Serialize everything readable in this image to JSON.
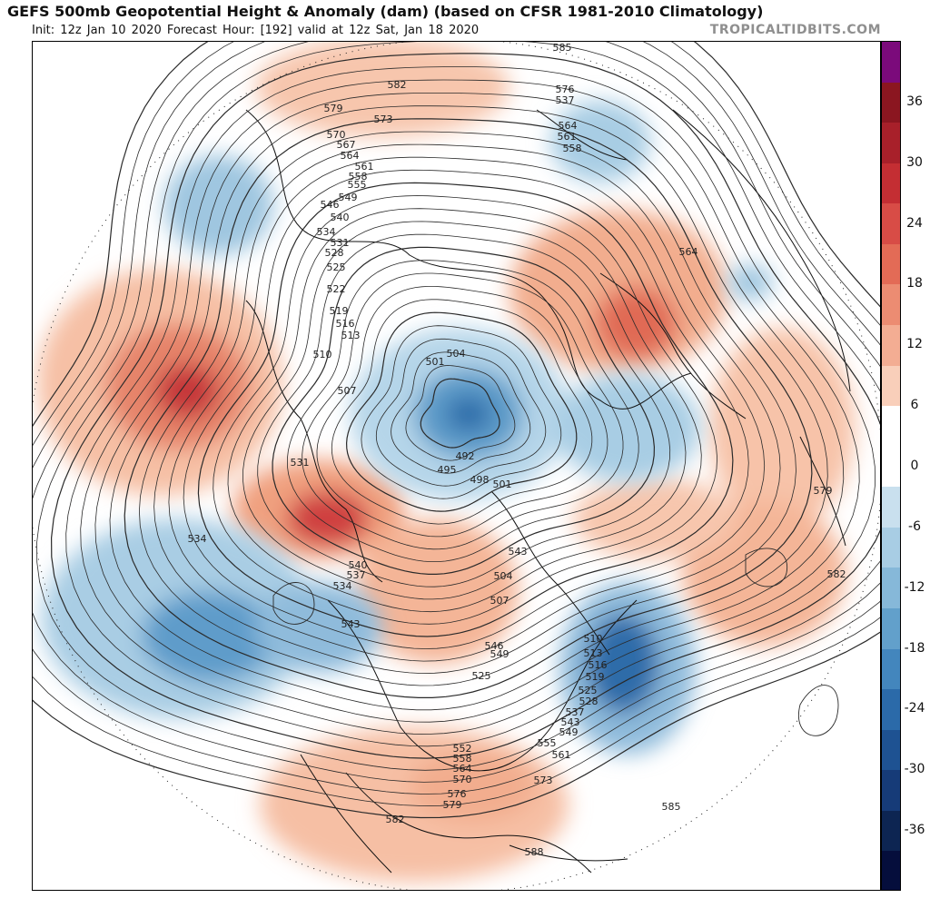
{
  "header": {
    "title": "GEFS 500mb Geopotential Height & Anomaly (dam) (based on CFSR 1981-2010 Climatology)",
    "subtitle": "Init: 12z Jan 10 2020   Forecast Hour: [192]   valid at 12z Sat, Jan 18 2020",
    "credit": "TROPICALTIDBITS.COM"
  },
  "colorbar": {
    "tick_labels": [
      "36",
      "30",
      "24",
      "18",
      "12",
      "6",
      "0",
      "-6",
      "-12",
      "-18",
      "-24",
      "-30",
      "-36"
    ],
    "colors_top_to_bottom": [
      "#7b0a7b",
      "#8b1620",
      "#a8202a",
      "#c42e33",
      "#d84c46",
      "#e36b56",
      "#ec8c72",
      "#f3ad93",
      "#f9cfba",
      "#ffffff",
      "#ffffff",
      "#c9e0ee",
      "#a8cde4",
      "#86b8d9",
      "#62a0cb",
      "#4386bd",
      "#2b6aa9",
      "#1e5292",
      "#163b78",
      "#0d2552",
      "#050e3c"
    ]
  },
  "map": {
    "contour_labels": [
      "585",
      "582",
      "579",
      "576",
      "573",
      "570",
      "567",
      "564",
      "561",
      "558",
      "555",
      "552",
      "549",
      "546",
      "543",
      "540",
      "537",
      "534",
      "531",
      "528",
      "525",
      "522",
      "519",
      "516",
      "513",
      "510",
      "507",
      "504",
      "501",
      "498",
      "495",
      "492",
      "588"
    ],
    "anomaly_centers": [
      {
        "name": "pacific-ridge",
        "sign": "positive",
        "peak": 30
      },
      {
        "name": "alaska-ridge",
        "sign": "positive",
        "peak": 30
      },
      {
        "name": "scandinavia-ridge",
        "sign": "positive",
        "peak": 24
      },
      {
        "name": "siberia-low",
        "sign": "negative",
        "peak": -24
      },
      {
        "name": "north-pacific-trough",
        "sign": "negative",
        "peak": -24
      },
      {
        "name": "northeast-canada-trough",
        "sign": "negative",
        "peak": -30
      },
      {
        "name": "southeast-us-ridge",
        "sign": "positive",
        "peak": 12
      }
    ]
  }
}
